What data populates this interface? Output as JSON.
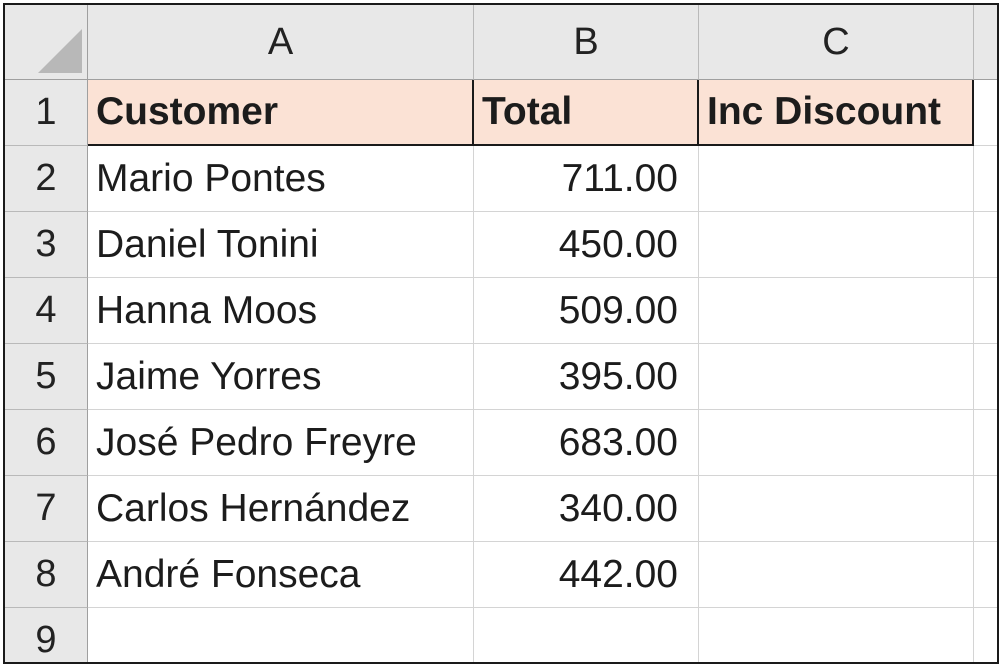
{
  "columns": [
    "A",
    "B",
    "C"
  ],
  "row_numbers": [
    "1",
    "2",
    "3",
    "4",
    "5",
    "6",
    "7",
    "8",
    "9"
  ],
  "header_row": {
    "customer": "Customer",
    "total": "Total",
    "inc_discount": "Inc Discount"
  },
  "rows": [
    {
      "customer": "Mario Pontes",
      "total": "711.00",
      "inc_discount": ""
    },
    {
      "customer": "Daniel Tonini",
      "total": "450.00",
      "inc_discount": ""
    },
    {
      "customer": "Hanna Moos",
      "total": "509.00",
      "inc_discount": ""
    },
    {
      "customer": "Jaime Yorres",
      "total": "395.00",
      "inc_discount": ""
    },
    {
      "customer": "José Pedro Freyre",
      "total": "683.00",
      "inc_discount": ""
    },
    {
      "customer": "Carlos Hernández",
      "total": "340.00",
      "inc_discount": ""
    },
    {
      "customer": "André Fonseca",
      "total": "442.00",
      "inc_discount": ""
    }
  ],
  "colors": {
    "header_fill": "#fbe2d5",
    "headings_fill": "#e8e8e8",
    "gridline": "#d4d4d4"
  }
}
